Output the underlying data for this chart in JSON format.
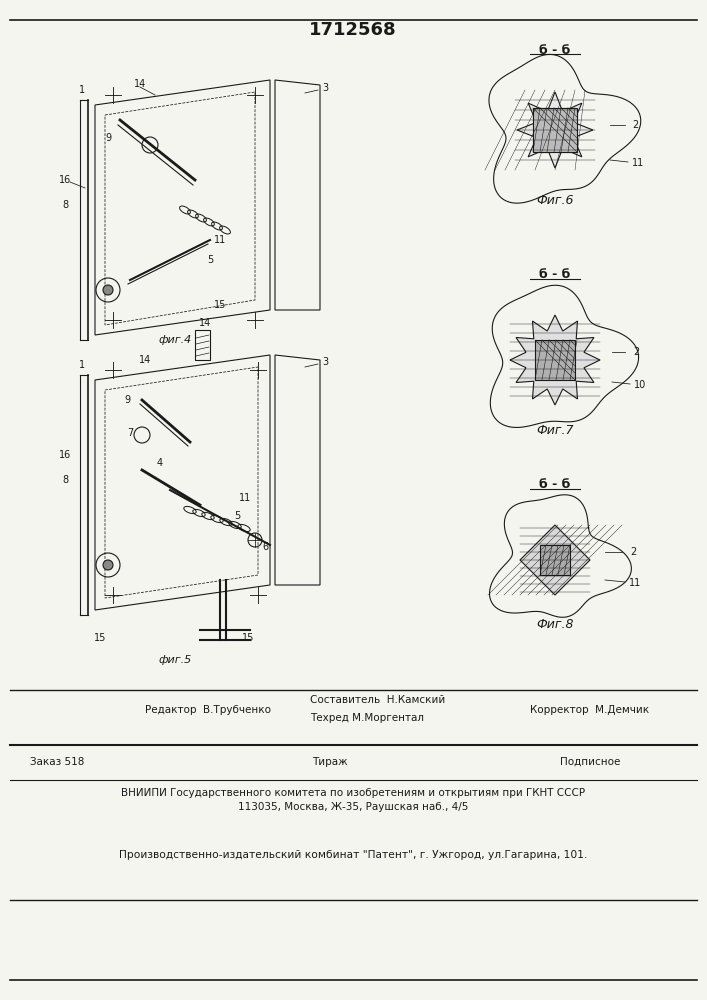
{
  "patent_number": "1712568",
  "background_color": "#f5f5f0",
  "line_color": "#1a1a1a",
  "title_fontsize": 13,
  "body_fontsize": 8,
  "footer_line1_left": "Редактор  В.Трубченко",
  "footer_line1_center_top": "Составитель  Н.Камский",
  "footer_line1_center_bot": "Техред М.Моргентал",
  "footer_line1_right": "Корректор  М.Демчик",
  "footer_line2_left": "Заказ 518",
  "footer_line2_center": "Тираж",
  "footer_line2_right": "Подписное",
  "footer_line3": "ВНИИПИ Государственного комитета по изобретениям и открытиям при ГКНТ СССР",
  "footer_line4": "113035, Москва, Ж-35, Раушская наб., 4/5",
  "footer_line5": "Производственно-издательский комбинат \"Патент\", г. Ужгород, ул.Гагарина, 101."
}
